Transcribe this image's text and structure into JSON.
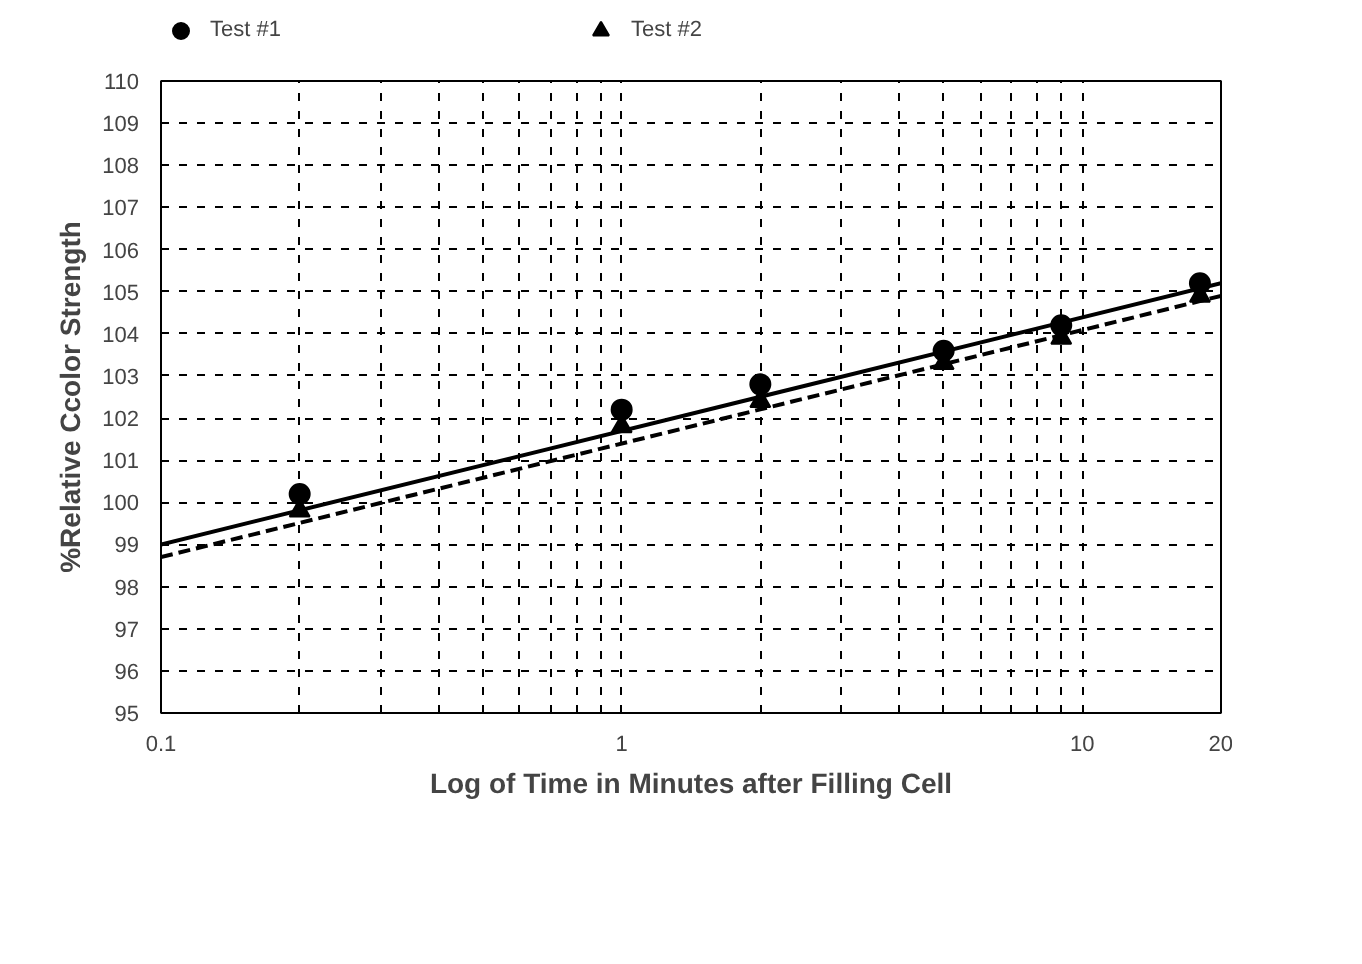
{
  "chart_data": {
    "type": "scatter",
    "xlabel": "Log of Time in Minutes after Filling Cell",
    "ylabel": "%Relative Ccolor Strength",
    "log": "x",
    "grid": true,
    "legend": "top",
    "xlim": [
      0.1,
      20
    ],
    "ylim": [
      95,
      110
    ],
    "xticks": [
      0.1,
      {
        "value": 0.2,
        "label": null
      },
      {
        "value": 0.3,
        "label": null
      },
      {
        "value": 0.4,
        "label": null
      },
      {
        "value": 0.5,
        "label": null
      },
      {
        "value": 0.6,
        "label": null
      },
      {
        "value": 0.7,
        "label": null
      },
      {
        "value": 0.8,
        "label": null
      },
      {
        "value": 0.9,
        "label": null
      },
      1,
      {
        "value": 2,
        "label": null
      },
      {
        "value": 3,
        "label": null
      },
      {
        "value": 4,
        "label": null
      },
      {
        "value": 5,
        "label": null
      },
      {
        "value": 6,
        "label": null
      },
      {
        "value": 7,
        "label": null
      },
      {
        "value": 8,
        "label": null
      },
      {
        "value": 9,
        "label": null
      },
      10,
      20
    ],
    "yticks": [
      95,
      96,
      97,
      98,
      99,
      100,
      101,
      102,
      103,
      104,
      105,
      106,
      107,
      108,
      109,
      110
    ],
    "series": [
      {
        "name": "Test #1",
        "marker": "circle",
        "color": "#000000",
        "x": [
          0.2,
          1,
          2,
          5,
          9,
          18
        ],
        "values": [
          100.2,
          102.2,
          102.8,
          103.6,
          104.2,
          105.2
        ]
      },
      {
        "name": "Test #2",
        "marker": "triangle",
        "color": "#000000",
        "x": [
          0.2,
          1,
          2,
          5,
          9,
          18
        ],
        "values": [
          99.8,
          101.8,
          102.4,
          103.3,
          103.9,
          104.9
        ]
      },
      {
        "type": "line",
        "line_style": "solid",
        "color": "#000000",
        "x": [
          0.1,
          20
        ],
        "values": [
          99.0,
          105.2
        ]
      },
      {
        "type": "line",
        "line_style": "dashed",
        "color": "#000000",
        "x": [
          0.1,
          20
        ],
        "values": [
          98.7,
          104.9
        ]
      }
    ]
  }
}
